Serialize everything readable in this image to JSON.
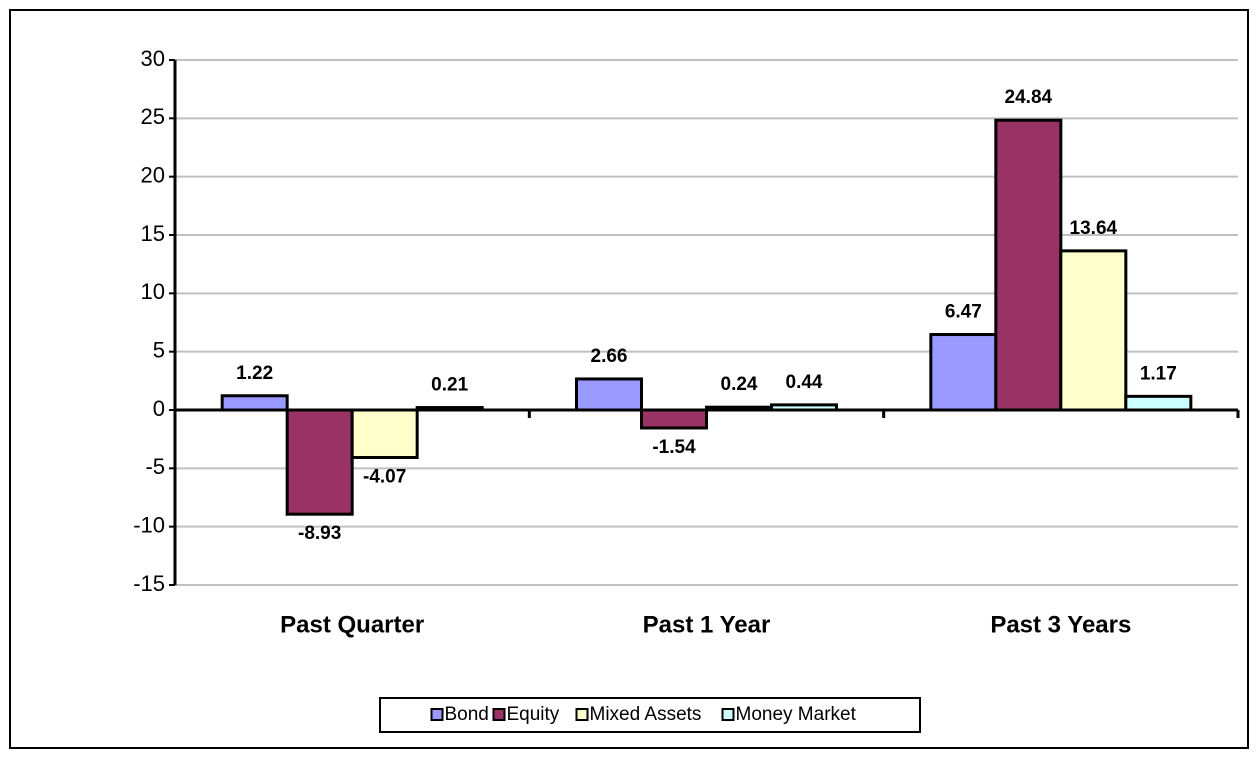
{
  "chart_data": {
    "type": "bar",
    "categories": [
      "Past Quarter",
      "Past 1 Year",
      "Past 3 Years"
    ],
    "series": [
      {
        "name": "Bond",
        "color": "#9999ff",
        "values": [
          1.22,
          2.66,
          6.47
        ]
      },
      {
        "name": "Equity",
        "color": "#993366",
        "values": [
          -8.93,
          -1.54,
          24.84
        ]
      },
      {
        "name": "Mixed Assets",
        "color": "#ffffcc",
        "values": [
          -4.07,
          0.24,
          13.64
        ]
      },
      {
        "name": "Money Market",
        "color": "#ccffff",
        "values": [
          0.21,
          0.44,
          1.17
        ]
      }
    ],
    "ylim": [
      -15,
      30
    ],
    "yticks": [
      -15,
      -10,
      -5,
      0,
      5,
      10,
      15,
      20,
      25,
      30
    ],
    "grid": true,
    "legend": "bottom"
  }
}
